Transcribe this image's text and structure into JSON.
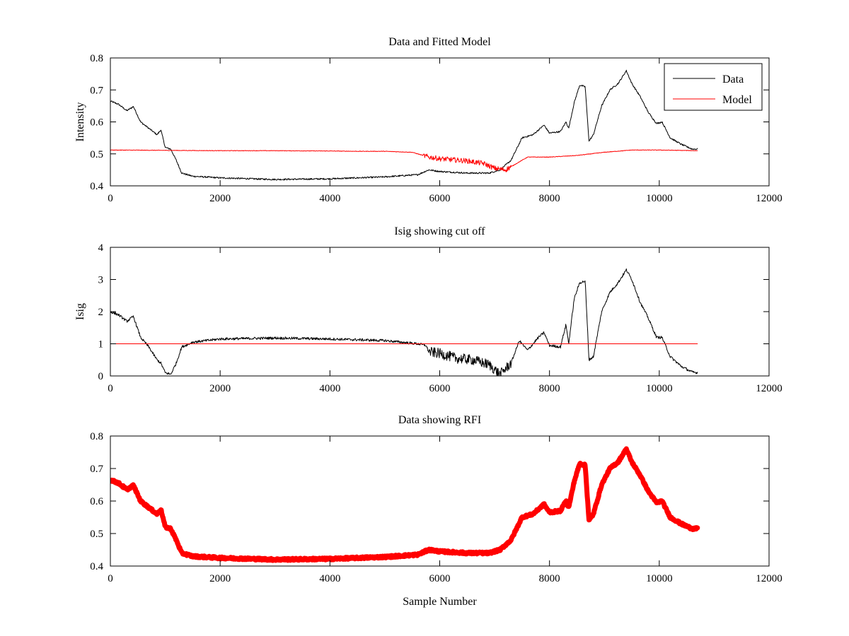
{
  "chart_data": [
    {
      "type": "line",
      "title": "Data and Fitted Model",
      "xlabel": "",
      "ylabel": "Intensity",
      "xlim": [
        0,
        12000
      ],
      "ylim": [
        0.4,
        0.8
      ],
      "xticks": [
        "0",
        "2000",
        "4000",
        "6000",
        "8000",
        "10000",
        "12000"
      ],
      "yticks": [
        "0.4",
        "0.5",
        "0.6",
        "0.7",
        "0.8"
      ],
      "legend": {
        "position": "top-right",
        "entries": [
          "Data",
          "Model"
        ]
      },
      "series": [
        {
          "name": "Data",
          "color": "#000000",
          "x": [
            0,
            150,
            300,
            420,
            550,
            700,
            850,
            920,
            1000,
            1100,
            1200,
            1300,
            1500,
            2000,
            3000,
            4000,
            5000,
            5600,
            5800,
            6000,
            6500,
            6900,
            7100,
            7300,
            7500,
            7700,
            7900,
            8000,
            8200,
            8300,
            8350,
            8450,
            8550,
            8650,
            8720,
            8800,
            8950,
            9100,
            9250,
            9400,
            9500,
            9650,
            9800,
            9950,
            10050,
            10200,
            10400,
            10600,
            10700
          ],
          "y": [
            0.665,
            0.655,
            0.635,
            0.648,
            0.6,
            0.58,
            0.56,
            0.575,
            0.52,
            0.515,
            0.48,
            0.44,
            0.43,
            0.425,
            0.42,
            0.422,
            0.428,
            0.435,
            0.45,
            0.445,
            0.44,
            0.44,
            0.45,
            0.48,
            0.55,
            0.56,
            0.59,
            0.565,
            0.57,
            0.6,
            0.58,
            0.66,
            0.715,
            0.71,
            0.54,
            0.56,
            0.65,
            0.7,
            0.72,
            0.76,
            0.72,
            0.68,
            0.63,
            0.595,
            0.6,
            0.55,
            0.53,
            0.515,
            0.515
          ]
        },
        {
          "name": "Model",
          "color": "#ff0000",
          "x": [
            0,
            1000,
            2000,
            3000,
            4000,
            4500,
            5000,
            5500,
            5800,
            6000,
            6500,
            6800,
            7000,
            7200,
            7400,
            7600,
            8000,
            8500,
            9000,
            9500,
            10000,
            10700
          ],
          "y": [
            0.512,
            0.511,
            0.51,
            0.51,
            0.509,
            0.508,
            0.508,
            0.505,
            0.49,
            0.485,
            0.478,
            0.47,
            0.455,
            0.45,
            0.47,
            0.49,
            0.49,
            0.495,
            0.505,
            0.512,
            0.512,
            0.51
          ]
        }
      ]
    },
    {
      "type": "line",
      "title": "Isig showing cut off",
      "xlabel": "",
      "ylabel": "Isig",
      "xlim": [
        0,
        12000
      ],
      "ylim": [
        0,
        4
      ],
      "xticks": [
        "0",
        "2000",
        "4000",
        "6000",
        "8000",
        "10000",
        "12000"
      ],
      "yticks": [
        "0",
        "1",
        "2",
        "3",
        "4"
      ],
      "series": [
        {
          "color": "#000000",
          "x": [
            0,
            150,
            300,
            420,
            550,
            700,
            850,
            920,
            1000,
            1100,
            1200,
            1300,
            1500,
            2000,
            3000,
            4000,
            5000,
            5600,
            5750,
            5800,
            6000,
            6300,
            6600,
            6900,
            7100,
            7300,
            7450,
            7600,
            7800,
            7900,
            8000,
            8200,
            8300,
            8350,
            8450,
            8550,
            8650,
            8720,
            8800,
            8950,
            9100,
            9250,
            9400,
            9500,
            9650,
            9800,
            9950,
            10050,
            10200,
            10400,
            10600,
            10700
          ],
          "y": [
            2.0,
            1.9,
            1.7,
            1.85,
            1.2,
            0.9,
            0.5,
            0.4,
            0.1,
            0.05,
            0.4,
            0.9,
            1.05,
            1.15,
            1.18,
            1.15,
            1.1,
            1.0,
            0.95,
            0.75,
            0.7,
            0.55,
            0.5,
            0.35,
            0.05,
            0.4,
            1.1,
            0.8,
            1.2,
            1.35,
            0.95,
            0.9,
            1.6,
            1.0,
            2.4,
            2.9,
            2.95,
            0.5,
            0.6,
            2.0,
            2.6,
            2.9,
            3.3,
            3.0,
            2.3,
            1.8,
            1.2,
            1.2,
            0.6,
            0.3,
            0.12,
            0.1
          ]
        },
        {
          "color": "#ff0000",
          "x": [
            0,
            10700
          ],
          "y": [
            1,
            1
          ]
        }
      ]
    },
    {
      "type": "scatter",
      "title": "Data showing RFI",
      "xlabel": "Sample Number",
      "ylabel": "",
      "xlim": [
        0,
        12000
      ],
      "ylim": [
        0.4,
        0.8
      ],
      "xticks": [
        "0",
        "2000",
        "4000",
        "6000",
        "8000",
        "10000",
        "12000"
      ],
      "yticks": [
        "0.4",
        "0.5",
        "0.6",
        "0.7",
        "0.8"
      ],
      "series": [
        {
          "color": "#ff0000",
          "x": [
            0,
            150,
            300,
            420,
            550,
            700,
            850,
            920,
            1000,
            1100,
            1200,
            1300,
            1500,
            2000,
            3000,
            4000,
            5000,
            5600,
            5800,
            6000,
            6500,
            6900,
            7100,
            7300,
            7500,
            7700,
            7900,
            8000,
            8200,
            8300,
            8350,
            8450,
            8550,
            8650,
            8720,
            8800,
            8950,
            9100,
            9250,
            9400,
            9500,
            9650,
            9800,
            9950,
            10050,
            10200,
            10400,
            10600,
            10700
          ],
          "y": [
            0.665,
            0.655,
            0.635,
            0.648,
            0.6,
            0.58,
            0.56,
            0.575,
            0.52,
            0.515,
            0.48,
            0.44,
            0.43,
            0.425,
            0.42,
            0.422,
            0.428,
            0.435,
            0.45,
            0.445,
            0.44,
            0.44,
            0.45,
            0.48,
            0.55,
            0.56,
            0.59,
            0.565,
            0.57,
            0.6,
            0.58,
            0.66,
            0.715,
            0.71,
            0.54,
            0.56,
            0.65,
            0.7,
            0.72,
            0.76,
            0.72,
            0.68,
            0.63,
            0.595,
            0.6,
            0.55,
            0.53,
            0.515,
            0.515
          ]
        }
      ]
    }
  ]
}
